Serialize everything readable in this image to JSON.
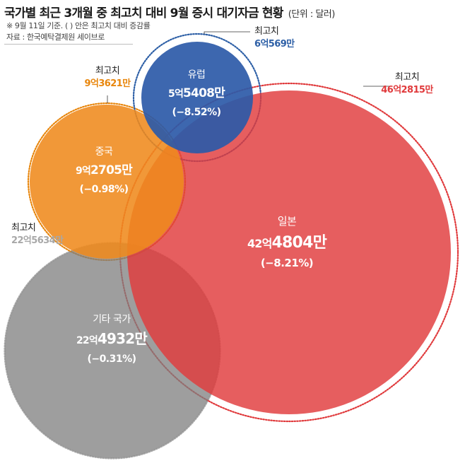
{
  "header": {
    "title": "국가별 최근 3개월 중 최고치 대비 9월 증시 대기자금 현황",
    "unit": "(단위 : 달러)",
    "note": "※ 9월 11일 기준. (   ) 안은 최고치 대비 증감률",
    "source": "자료 : 한국예탁결제원 세이브로"
  },
  "chart_data": {
    "type": "bubble",
    "peak_label": "최고치",
    "series": [
      {
        "name": "기타 국가",
        "current": "22억4932만",
        "current_prefix": "22억",
        "current_suffix": "4932만",
        "change": "(−0.31%)",
        "peak": "22억5634만",
        "color": "#7d7d7d",
        "peak_color": "#a8a8a8"
      },
      {
        "name": "일본",
        "current": "42억4804만",
        "current_prefix": "42억",
        "current_suffix": "4804만",
        "change": "(−8.21%)",
        "peak": "46억2815만",
        "color": "#e03a3c",
        "peak_color": "#e03a3c"
      },
      {
        "name": "중국",
        "current": "9억2705만",
        "current_prefix": "9억",
        "current_suffix": "2705만",
        "change": "(−0.98%)",
        "peak": "9억3621만",
        "color": "#ef8a1c",
        "peak_color": "#e8860c"
      },
      {
        "name": "유럽",
        "current": "5억5408만",
        "current_prefix": "5억",
        "current_suffix": "5408만",
        "change": "(−8.52%)",
        "peak": "6억569만",
        "color": "#2c5aa8",
        "peak_color": "#2d5fa6"
      }
    ]
  }
}
